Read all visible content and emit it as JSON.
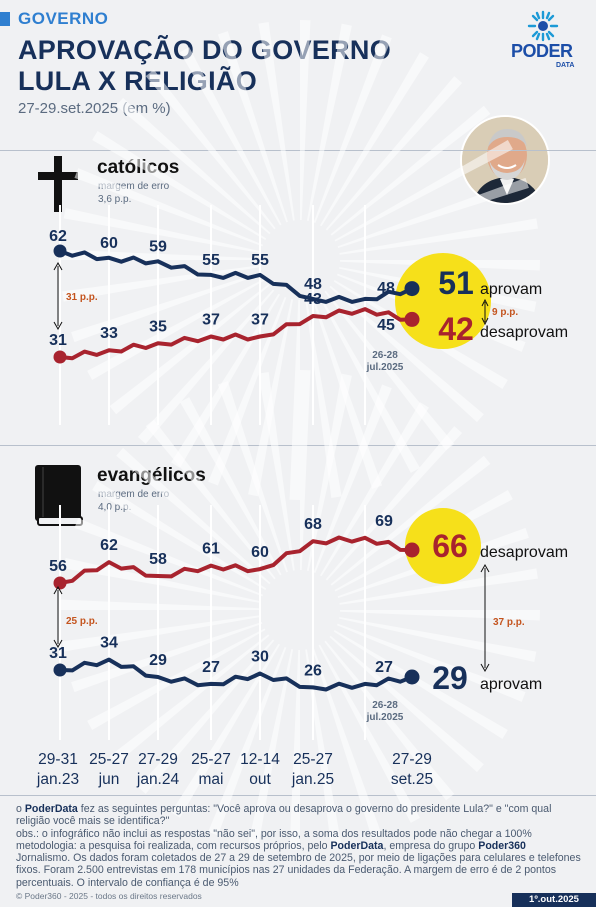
{
  "header": {
    "kicker": "GOVERNO",
    "title_line1": "APROVAÇÃO DO GOVERNO",
    "title_line2": "LULA X RELIGIÃO",
    "subtitle": "27-29.set.2025 (em %)"
  },
  "logo": {
    "name": "PODER",
    "sub": "DATA"
  },
  "sections": {
    "catolicos": {
      "title": "católicos",
      "note_line1": "margem de erro",
      "note_line2": "3,6 p.p."
    },
    "evangelicos": {
      "title": "evangélicos",
      "note_line1": "margem de erro",
      "note_line2": "4,0 p.p."
    }
  },
  "x_labels": [
    {
      "l1": "29-31",
      "l2": "jan.23"
    },
    {
      "l1": "25-27",
      "l2": "jun"
    },
    {
      "l1": "27-29",
      "l2": "jan.24"
    },
    {
      "l1": "25-27",
      "l2": "mai"
    },
    {
      "l1": "12-14",
      "l2": "out"
    },
    {
      "l1": "25-27",
      "l2": "jan.25"
    },
    {
      "l1": "27-29",
      "l2": "set.25"
    }
  ],
  "colors": {
    "approve": "#17305a",
    "disapprove": "#a8232e",
    "highlight": "#f6e01a",
    "accent": "#2f7fd0"
  },
  "chart_data": [
    {
      "type": "line",
      "title": "católicos",
      "ylim": [
        20,
        70
      ],
      "series": [
        {
          "name": "aprovam",
          "color": "#17305a",
          "values": [
            62,
            60,
            59,
            55,
            55,
            48,
            48,
            51
          ],
          "labeled": [
            62,
            60,
            59,
            55,
            55,
            48,
            48,
            51
          ]
        },
        {
          "name": "desaprovam",
          "color": "#a8232e",
          "values": [
            31,
            33,
            35,
            37,
            37,
            43,
            45,
            42
          ],
          "labeled": [
            31,
            33,
            35,
            37,
            37,
            43,
            45,
            42
          ]
        }
      ],
      "annotations": {
        "start_gap": "31 p.p.",
        "end_gap": "9 p.p.",
        "prev_date_l1": "26-28",
        "prev_date_l2": "jul.2025"
      }
    },
    {
      "type": "line",
      "title": "evangélicos",
      "ylim": [
        20,
        75
      ],
      "series": [
        {
          "name": "desaprovam",
          "color": "#a8232e",
          "values": [
            56,
            62,
            58,
            61,
            60,
            68,
            69,
            66
          ]
        },
        {
          "name": "aprovam",
          "color": "#17305a",
          "values": [
            31,
            34,
            29,
            27,
            30,
            26,
            27,
            29
          ]
        }
      ],
      "annotations": {
        "start_gap": "25 p.p.",
        "end_gap": "37 p.p.",
        "prev_date_l1": "26-28",
        "prev_date_l2": "jul.2025"
      }
    }
  ],
  "footer": {
    "q_brand": "PoderData",
    "q_pre": "o ",
    "q_text": " fez as seguintes perguntas: \"Você aprova ou desaprova o governo do presidente Lula?\" e \"com qual religião você mais se identifica?\"",
    "obs": "obs.: o infográfico não inclui as respostas \"não sei\", por isso, a soma dos resultados pode não chegar a 100%",
    "method_a": "metodologia: a pesquisa foi realizada, com recursos próprios, pelo ",
    "method_brand1": "PoderData",
    "method_b": ", empresa do grupo ",
    "method_brand2": "Poder360",
    "method_c": " Jornalismo. Os dados foram coletados de 27 a 29 de setembro de 2025, por meio de ligações para celulares e telefones fixos. Foram 2.500 entrevistas em 178 municípios nas 27 unidades da Federação. A margem de erro é de 2 pontos percentuais. O intervalo de confiança é de 95%",
    "copyright": "© Poder360 - 2025 - todos os direitos reservados",
    "date": "1º.out.2025"
  }
}
